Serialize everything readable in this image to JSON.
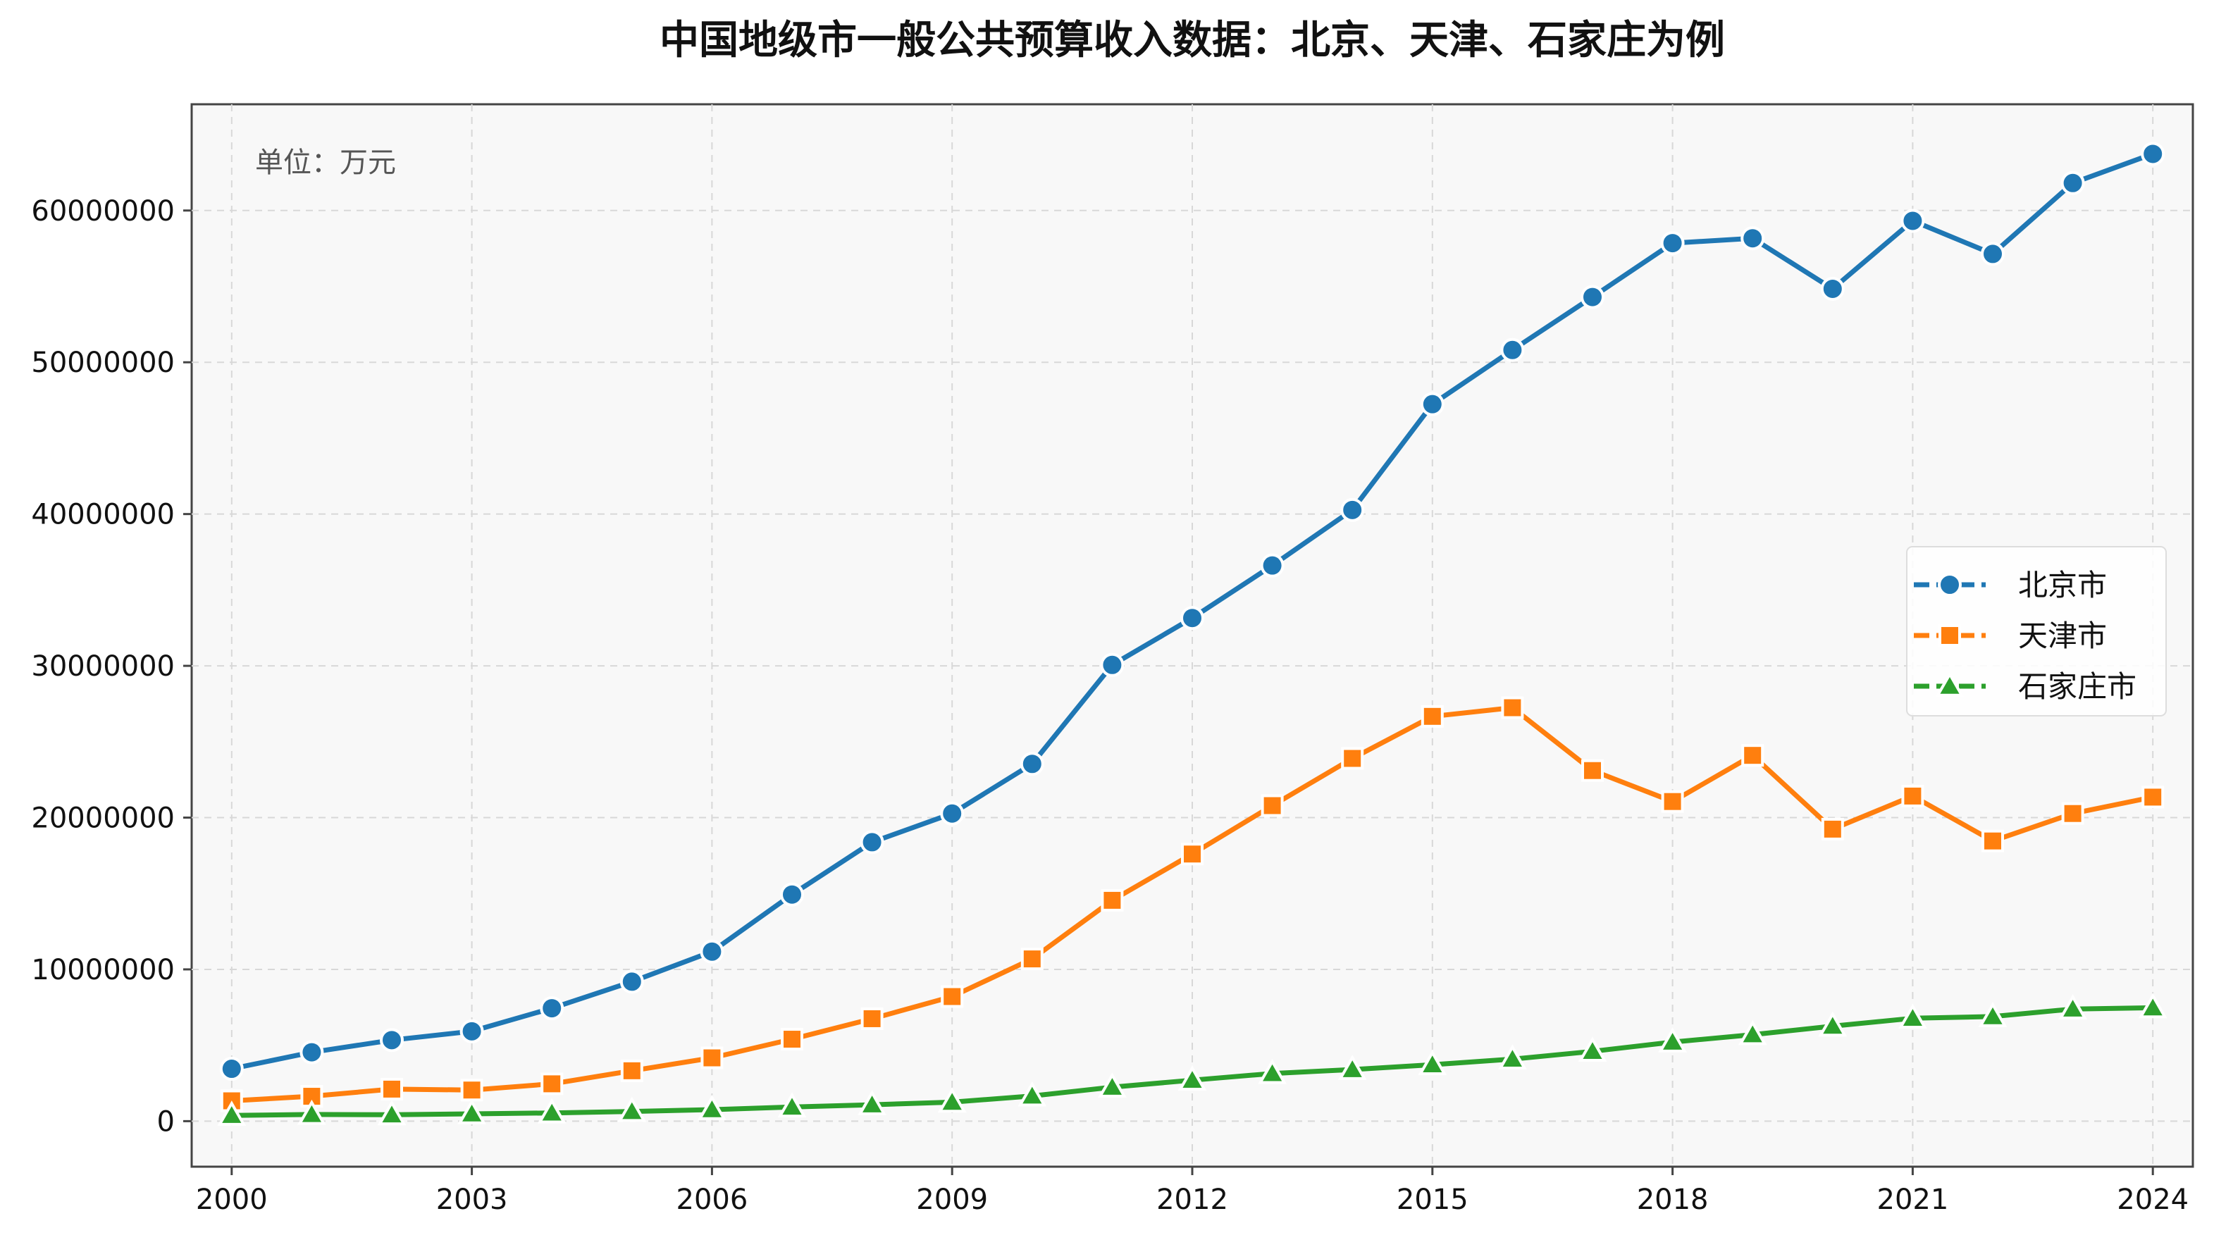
{
  "chart_data": {
    "type": "line",
    "title": "中国地级市一般公共预算收入数据：北京、天津、石家庄为例",
    "annotation": "单位：万元",
    "xlabel": "",
    "ylabel": "",
    "x": [
      2000,
      2001,
      2002,
      2003,
      2004,
      2005,
      2006,
      2007,
      2008,
      2009,
      2010,
      2011,
      2012,
      2013,
      2014,
      2015,
      2016,
      2017,
      2018,
      2019,
      2020,
      2021,
      2022,
      2023,
      2024
    ],
    "x_ticks": [
      "2000",
      "2003",
      "2006",
      "2009",
      "2012",
      "2015",
      "2018",
      "2021",
      "2024"
    ],
    "y_ticks": [
      "0",
      "10000000",
      "20000000",
      "30000000",
      "40000000",
      "50000000",
      "60000000"
    ],
    "xlim": [
      1999.5,
      2024.5
    ],
    "ylim": [
      -3000000,
      67000000
    ],
    "grid": true,
    "legend_position": "center-right",
    "background_color": "#f8f8f8",
    "series": [
      {
        "name": "北京市",
        "color": "#1f77b4",
        "marker": "circle",
        "values": [
          3450000,
          4540000,
          5340000,
          5920000,
          7440000,
          9190000,
          11170000,
          14930000,
          18380000,
          20270000,
          23540000,
          30060000,
          33150000,
          36610000,
          40270000,
          47240000,
          50810000,
          54300000,
          57850000,
          58170000,
          54840000,
          59320000,
          57140000,
          61810000,
          63730000
        ]
      },
      {
        "name": "天津市",
        "color": "#ff7f0e",
        "marker": "square",
        "values": [
          1340000,
          1640000,
          2110000,
          2050000,
          2460000,
          3320000,
          4170000,
          5400000,
          6750000,
          8210000,
          10690000,
          14550000,
          17600000,
          20790000,
          23900000,
          26670000,
          27240000,
          23100000,
          21060000,
          24100000,
          19240000,
          21420000,
          18460000,
          20270000,
          21350000
        ]
      },
      {
        "name": "石家庄市",
        "color": "#2ca02c",
        "marker": "triangle",
        "values": [
          380000,
          440000,
          420000,
          480000,
          540000,
          640000,
          760000,
          930000,
          1080000,
          1250000,
          1660000,
          2240000,
          2700000,
          3140000,
          3400000,
          3720000,
          4090000,
          4600000,
          5210000,
          5700000,
          6260000,
          6780000,
          6890000,
          7390000,
          7470000
        ]
      }
    ]
  }
}
